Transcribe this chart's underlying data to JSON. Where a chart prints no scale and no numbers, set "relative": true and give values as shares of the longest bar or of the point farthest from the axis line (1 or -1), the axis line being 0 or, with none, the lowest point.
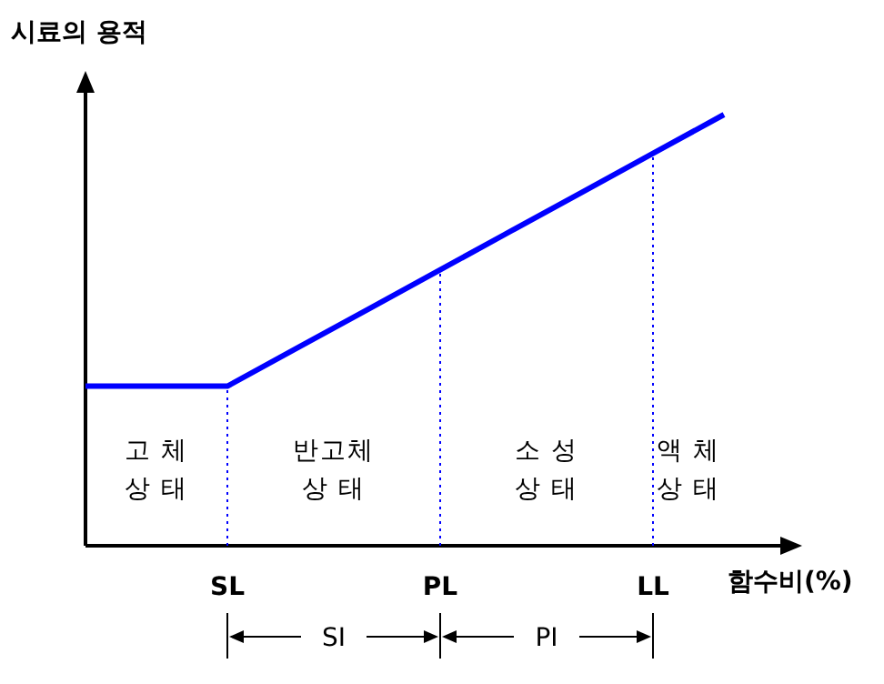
{
  "chart_data": {
    "type": "line",
    "relative": true,
    "xlabel": "함수비(%)",
    "ylabel": "시료의 용적",
    "categories": [
      null,
      null,
      "SL",
      null,
      null,
      "PL",
      null,
      null,
      "LL",
      null
    ],
    "series": [
      {
        "color": "#0000ff",
        "values": [
          0.37,
          0.37,
          0.37,
          0.46,
          0.55,
          0.64,
          0.73,
          0.82,
          0.91,
          1.0
        ]
      }
    ],
    "annotations": [
      "고 체\n상 태",
      "반고체\n상 태",
      "소 성\n상 태",
      "액 체\n상 태",
      "SI",
      "PI"
    ],
    "ref_lines": [
      {
        "axis": "x",
        "value": "SL",
        "color": "#0000ff",
        "line_style": "dotted"
      },
      {
        "axis": "x",
        "value": "PL",
        "color": "#0000ff",
        "line_style": "dotted"
      },
      {
        "axis": "x",
        "value": "LL",
        "color": "#0000ff",
        "line_style": "dotted"
      }
    ],
    "marker": "none",
    "line_style": "solid"
  }
}
